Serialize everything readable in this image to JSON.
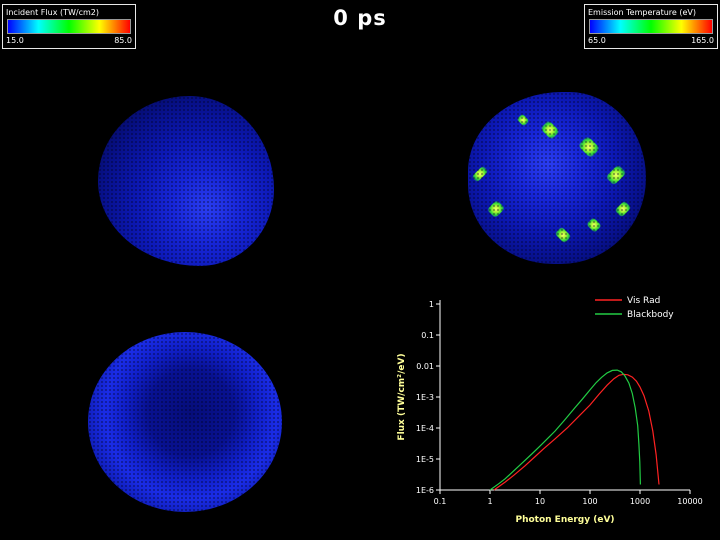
{
  "header": {
    "title": "0 ps"
  },
  "legends": {
    "incident_flux": {
      "title": "Incident Flux (TW/cm2)",
      "min": "15.0",
      "max": "85.0"
    },
    "emission_temp": {
      "title": "Emission Temperature (eV)",
      "min": "65.0",
      "max": "165.0"
    }
  },
  "colors": {
    "background": "#000000",
    "colorbar_gradient": [
      "#0000ff",
      "#00ffff",
      "#00ff00",
      "#ffff00",
      "#ff0000"
    ],
    "sphere_blue": "#0c18b4",
    "axis": "#ffffff",
    "axis_label": "#ffff99",
    "tick_label": "#ffffff",
    "legend_text": "#ffffff"
  },
  "chart_data": {
    "type": "line",
    "title": "",
    "xlabel": "Photon Energy (eV)",
    "ylabel": "Flux (TW/cm²/eV)",
    "xscale": "log",
    "yscale": "log",
    "xlim": [
      0.1,
      10000
    ],
    "ylim": [
      1e-06,
      1
    ],
    "grid": false,
    "legend_position": "top-right",
    "x_tick_values": [
      0.1,
      1,
      10,
      100,
      1000,
      10000
    ],
    "x_tick_labels": [
      "0.1",
      "1",
      "10",
      "100",
      "1000",
      "10000"
    ],
    "y_tick_values": [
      1,
      0.1,
      0.01,
      0.001,
      0.0001,
      1e-05,
      1e-06
    ],
    "y_tick_labels": [
      "1",
      "0.1",
      "0.01",
      "1E-3",
      "1E-4",
      "1E-5",
      "1E-6"
    ],
    "series": [
      {
        "name": "Vis Rad",
        "color": "#ff2222",
        "x": [
          1.2,
          2,
          3,
          5,
          8,
          12,
          20,
          35,
          60,
          100,
          150,
          220,
          300,
          380,
          470,
          570,
          700,
          850,
          1000,
          1200,
          1500,
          1800,
          2100,
          2400
        ],
        "y": [
          1e-06,
          1.8e-06,
          3e-06,
          6e-06,
          1.2e-05,
          2.2e-05,
          4.5e-05,
          0.0001,
          0.00024,
          0.00055,
          0.0012,
          0.0024,
          0.0039,
          0.005,
          0.0054,
          0.0052,
          0.0044,
          0.0032,
          0.0021,
          0.0011,
          0.00035,
          8e-05,
          1.4e-05,
          1.5e-06
        ]
      },
      {
        "name": "Blackbody",
        "color": "#22cc44",
        "x": [
          1,
          1.5,
          2,
          3,
          5,
          7,
          10,
          15,
          20,
          30,
          50,
          70,
          100,
          130,
          170,
          220,
          280,
          350,
          420,
          500,
          600,
          700,
          800,
          900,
          950,
          990,
          1020
        ],
        "y": [
          1e-06,
          1.6e-06,
          2.3e-06,
          4.2e-06,
          9e-06,
          1.5e-05,
          2.6e-05,
          5e-05,
          8e-05,
          0.00017,
          0.00045,
          0.00085,
          0.0017,
          0.0028,
          0.0043,
          0.006,
          0.0072,
          0.0074,
          0.0065,
          0.0048,
          0.0028,
          0.0013,
          0.00045,
          0.00012,
          3e-05,
          8e-06,
          1.5e-06
        ]
      }
    ]
  }
}
